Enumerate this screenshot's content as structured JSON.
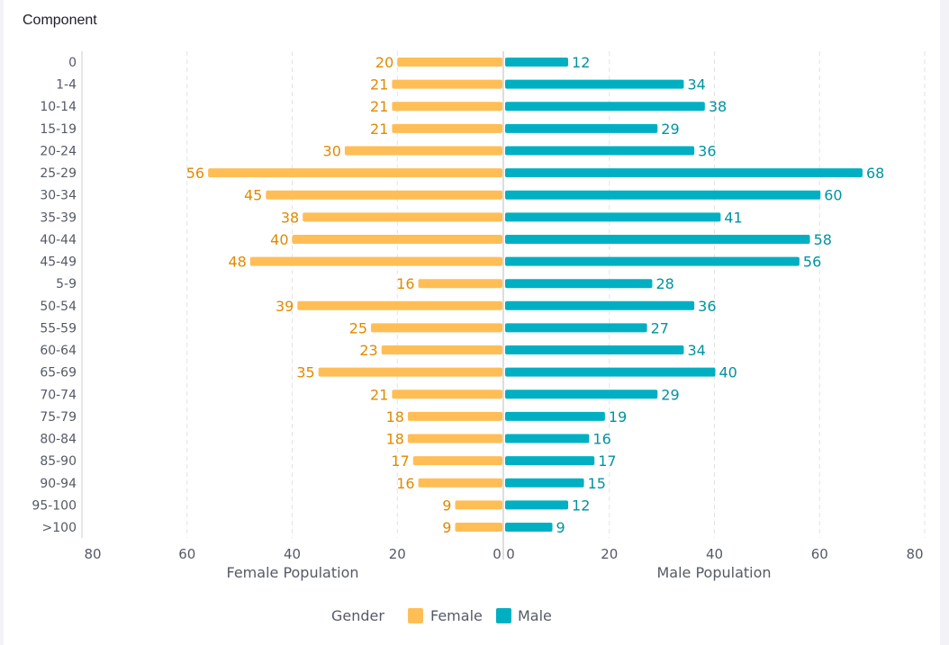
{
  "title": "Component",
  "chart_data": {
    "type": "bar",
    "orientation": "horizontal-butterfly",
    "categories": [
      "0",
      "1-4",
      "10-14",
      "15-19",
      "20-24",
      "25-29",
      "30-34",
      "35-39",
      "40-44",
      "45-49",
      "5-9",
      "50-54",
      "55-59",
      "60-64",
      "65-69",
      "70-74",
      "75-79",
      "80-84",
      "85-90",
      "90-94",
      "95-100",
      ">100"
    ],
    "series": [
      {
        "name": "Female",
        "color": "#ffbe55",
        "label_color": "#e08a00",
        "values": [
          20,
          21,
          21,
          21,
          30,
          56,
          45,
          38,
          40,
          48,
          16,
          39,
          25,
          23,
          35,
          21,
          18,
          18,
          17,
          16,
          9,
          9
        ]
      },
      {
        "name": "Male",
        "color": "#00b0c2",
        "label_color": "#00939f",
        "values": [
          12,
          34,
          38,
          29,
          36,
          68,
          60,
          41,
          58,
          56,
          28,
          36,
          27,
          34,
          40,
          29,
          19,
          16,
          17,
          15,
          12,
          9
        ]
      }
    ],
    "left_axis": {
      "label": "Female Population",
      "range": [
        0,
        80
      ],
      "ticks": [
        "0",
        "20",
        "40",
        "60",
        "80"
      ]
    },
    "right_axis": {
      "label": "Male Population",
      "range": [
        0,
        80
      ],
      "ticks": [
        "0",
        "20",
        "40",
        "60",
        "80"
      ]
    },
    "grid": true,
    "legend": {
      "title": "Gender",
      "placement": "bottom",
      "entries": [
        "Female",
        "Male"
      ]
    }
  }
}
